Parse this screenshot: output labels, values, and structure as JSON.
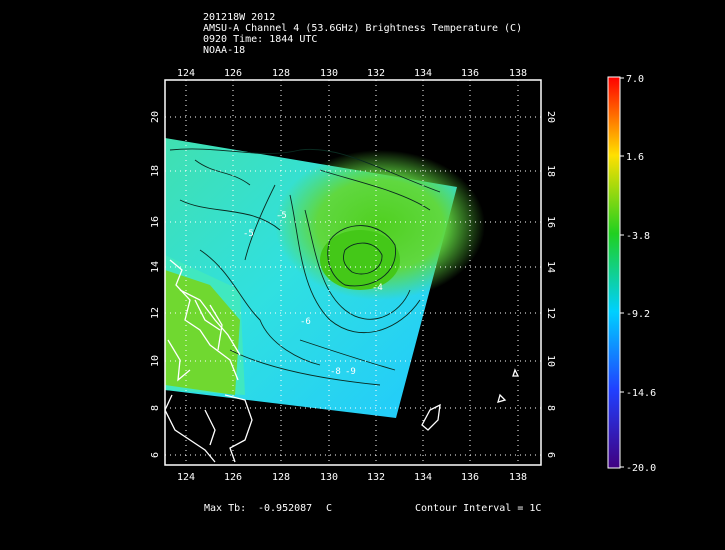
{
  "header": {
    "line1": "201218W 2012",
    "line2": "AMSU-A Channel 4 (53.6GHz) Brightness Temperature (C)",
    "line3": "0920 Time: 1844 UTC",
    "line4": "NOAA-18"
  },
  "axes": {
    "lon_ticks": [
      "124",
      "126",
      "128",
      "130",
      "132",
      "134",
      "136",
      "138"
    ],
    "lat_ticks": [
      "20",
      "18",
      "16",
      "14",
      "12",
      "10",
      "8",
      "6"
    ]
  },
  "colorbar": {
    "labels": [
      "7.0",
      "1.6",
      "-3.8",
      "-9.2",
      "-14.6",
      "-20.0"
    ],
    "min": -20.0,
    "max": 7.0
  },
  "contour_labels": [
    "-5",
    "-5",
    "-6",
    "-4",
    "-8",
    "-9"
  ],
  "footer": {
    "max_tb_label": "Max Tb:",
    "max_tb_value": "-0.952087",
    "max_tb_unit": "C",
    "contour_interval": "Contour Interval = 1C"
  }
}
